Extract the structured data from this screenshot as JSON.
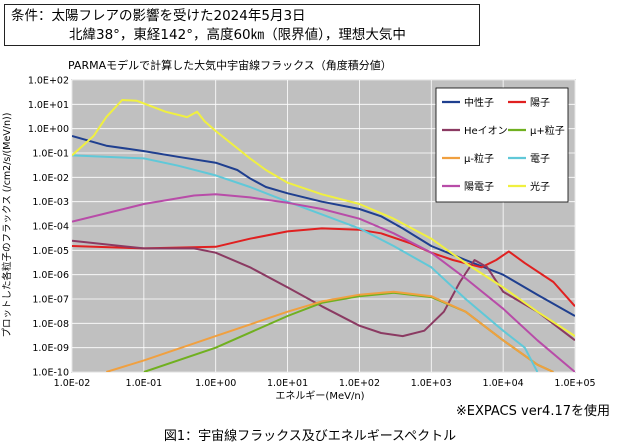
{
  "conditions": {
    "line1": "条件：太陽フレアの影響を受けた2024年5月3日",
    "line2": "北緯38°，東経142°，高度60㎞（限界値），理想大気中"
  },
  "note": "※EXPACS ver4.17を使用",
  "caption": "図1：宇宙線フラックス及びエネルギースペクトル",
  "chart_data": {
    "type": "line",
    "title": "PARMAモデルで計算した大気中宇宙線フラックス（角度積分値）",
    "xlabel": "エネルギー(MeV/n)",
    "ylabel": "プロットした各粒子のフラックス (/cm2/s/(MeV/n))",
    "x_scale": "log",
    "y_scale": "log",
    "xlim": [
      0.01,
      100000
    ],
    "ylim": [
      1e-10,
      100
    ],
    "x_ticks": [
      "1.0E-02",
      "1.0E-01",
      "1.0E+00",
      "1.0E+01",
      "1.0E+02",
      "1.0E+03",
      "1.0E+04",
      "1.0E+05"
    ],
    "y_ticks": [
      "1.0E-10",
      "1.0E-09",
      "1.0E-08",
      "1.0E-07",
      "1.0E-06",
      "1.0E-05",
      "1.0E-04",
      "1.0E-03",
      "1.0E-02",
      "1.0E-01",
      "1.0E+00",
      "1.0E+01",
      "1.0E+02"
    ],
    "grid": true,
    "legend_position": "top-right-inside",
    "background_color": "#c0c0c0",
    "series": [
      {
        "name": "中性子",
        "color": "#1f3f8f",
        "points": [
          [
            0.01,
            0.5
          ],
          [
            0.03,
            0.2
          ],
          [
            0.1,
            0.12
          ],
          [
            0.3,
            0.07
          ],
          [
            1,
            0.04
          ],
          [
            2,
            0.02
          ],
          [
            3,
            0.009
          ],
          [
            5,
            0.004
          ],
          [
            10,
            0.0022
          ],
          [
            30,
            0.001
          ],
          [
            100,
            0.0005
          ],
          [
            200,
            0.00025
          ],
          [
            400,
            8e-05
          ],
          [
            1000,
            1.5e-05
          ],
          [
            3000,
            4e-06
          ],
          [
            10000,
            1e-06
          ],
          [
            30000,
            1.5e-07
          ],
          [
            100000,
            2e-08
          ]
        ]
      },
      {
        "name": "陽子",
        "color": "#e02020",
        "points": [
          [
            0.01,
            1.5e-05
          ],
          [
            0.1,
            1.2e-05
          ],
          [
            1,
            1.4e-05
          ],
          [
            3,
            3e-05
          ],
          [
            10,
            6e-05
          ],
          [
            30,
            8e-05
          ],
          [
            100,
            7e-05
          ],
          [
            200,
            5e-05
          ],
          [
            500,
            2e-05
          ],
          [
            1000,
            8e-06
          ],
          [
            2000,
            4e-06
          ],
          [
            5000,
            2e-06
          ],
          [
            8000,
            4e-06
          ],
          [
            12000,
            9e-06
          ],
          [
            20000,
            3e-06
          ],
          [
            50000,
            5e-07
          ],
          [
            100000,
            5e-08
          ]
        ]
      },
      {
        "name": "Heイオン",
        "color": "#8b3a62",
        "points": [
          [
            0.01,
            2.5e-05
          ],
          [
            0.1,
            1.2e-05
          ],
          [
            0.5,
            1.2e-05
          ],
          [
            1,
            8e-06
          ],
          [
            3,
            2e-06
          ],
          [
            10,
            3e-07
          ],
          [
            30,
            5e-08
          ],
          [
            100,
            8e-09
          ],
          [
            200,
            4e-09
          ],
          [
            400,
            3e-09
          ],
          [
            800,
            5e-09
          ],
          [
            1500,
            3e-08
          ],
          [
            2500,
            5e-07
          ],
          [
            4000,
            4e-06
          ],
          [
            6000,
            2e-06
          ],
          [
            10000,
            2e-07
          ],
          [
            30000,
            3e-08
          ],
          [
            100000,
            2e-09
          ]
        ]
      },
      {
        "name": "μ+粒子",
        "color": "#70b020",
        "points": [
          [
            0.1,
            1e-10
          ],
          [
            1,
            1e-09
          ],
          [
            10,
            2e-08
          ],
          [
            30,
            7e-08
          ],
          [
            100,
            1.3e-07
          ],
          [
            300,
            1.8e-07
          ],
          [
            1000,
            1.2e-07
          ],
          [
            3000,
            3e-08
          ],
          [
            10000,
            2e-09
          ],
          [
            30000,
            2e-10
          ],
          [
            50000,
            1e-10
          ]
        ]
      },
      {
        "name": "μ-粒子",
        "color": "#f0a040",
        "points": [
          [
            0.03,
            1e-10
          ],
          [
            0.1,
            3e-10
          ],
          [
            1,
            3e-09
          ],
          [
            10,
            3e-08
          ],
          [
            30,
            8e-08
          ],
          [
            100,
            1.5e-07
          ],
          [
            300,
            2e-07
          ],
          [
            1000,
            1.3e-07
          ],
          [
            3000,
            3e-08
          ],
          [
            10000,
            2e-09
          ],
          [
            30000,
            2e-10
          ],
          [
            50000,
            1e-10
          ]
        ]
      },
      {
        "name": "電子",
        "color": "#60c8d8",
        "points": [
          [
            0.01,
            0.08
          ],
          [
            0.1,
            0.06
          ],
          [
            0.3,
            0.03
          ],
          [
            1,
            0.012
          ],
          [
            3,
            0.004
          ],
          [
            10,
            0.001
          ],
          [
            30,
            0.0003
          ],
          [
            100,
            8e-05
          ],
          [
            300,
            1.5e-05
          ],
          [
            1000,
            2e-06
          ],
          [
            3000,
            1e-07
          ],
          [
            10000,
            5e-09
          ],
          [
            20000,
            1e-09
          ],
          [
            30000,
            1e-10
          ]
        ]
      },
      {
        "name": "陽電子",
        "color": "#b84ca8",
        "points": [
          [
            0.01,
            0.00015
          ],
          [
            0.1,
            0.0008
          ],
          [
            0.5,
            0.0018
          ],
          [
            1,
            0.002
          ],
          [
            3,
            0.0015
          ],
          [
            10,
            0.0009
          ],
          [
            30,
            0.0005
          ],
          [
            100,
            0.0002
          ],
          [
            300,
            5e-05
          ],
          [
            1000,
            8e-06
          ],
          [
            3000,
            7e-07
          ],
          [
            10000,
            4e-08
          ],
          [
            30000,
            2e-09
          ],
          [
            100000,
            1e-10
          ]
        ]
      },
      {
        "name": "光子",
        "color": "#f0f040",
        "points": [
          [
            0.01,
            0.08
          ],
          [
            0.02,
            0.5
          ],
          [
            0.03,
            3
          ],
          [
            0.05,
            15
          ],
          [
            0.08,
            14
          ],
          [
            0.2,
            5
          ],
          [
            0.4,
            3
          ],
          [
            0.55,
            5
          ],
          [
            0.7,
            2
          ],
          [
            1,
            0.8
          ],
          [
            3,
            0.06
          ],
          [
            5,
            0.02
          ],
          [
            10,
            0.006
          ],
          [
            30,
            0.002
          ],
          [
            100,
            0.0008
          ],
          [
            300,
            0.0002
          ],
          [
            1000,
            3e-05
          ],
          [
            3000,
            3e-06
          ],
          [
            10000,
            3e-07
          ],
          [
            30000,
            3e-08
          ],
          [
            100000,
            3e-09
          ]
        ]
      }
    ]
  }
}
